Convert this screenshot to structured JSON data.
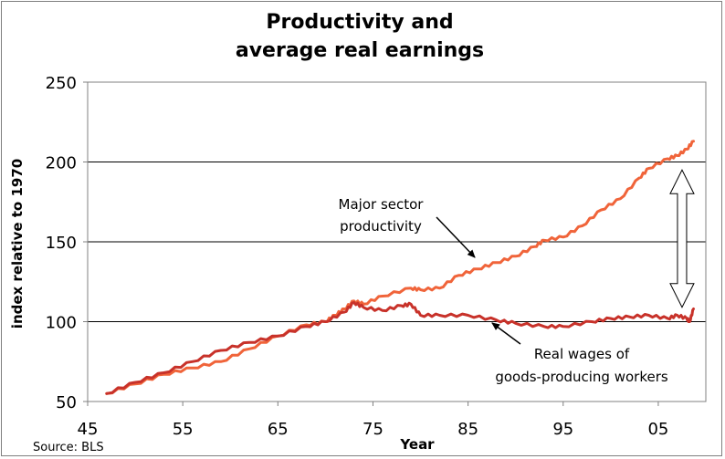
{
  "chart_data": {
    "type": "line",
    "title_line1": "Productivity and",
    "title_line2": "average real earnings",
    "xlabel": "Year",
    "ylabel": "index relative to 1970",
    "source": "Source: BLS",
    "xlim": [
      1945,
      2010
    ],
    "ylim": [
      50,
      250
    ],
    "x_ticks": [
      1945,
      1955,
      1965,
      1975,
      1985,
      1995,
      2005
    ],
    "x_tick_labels": [
      "45",
      "55",
      "65",
      "75",
      "85",
      "95",
      "05"
    ],
    "y_ticks": [
      50,
      100,
      150,
      200,
      250
    ],
    "y_tick_labels": [
      "50",
      "100",
      "150",
      "200",
      "250"
    ],
    "grid": "horizontal",
    "series": [
      {
        "key": "productivity",
        "color": "#f0643a",
        "x": [
          1947,
          1950,
          1953,
          1956,
          1959,
          1962,
          1965,
          1968,
          1970,
          1971,
          1972,
          1973,
          1974,
          1976,
          1979,
          1980,
          1982,
          1984,
          1986,
          1988,
          1990,
          1992,
          1993,
          1995,
          1997,
          1999,
          2001,
          2003,
          2004,
          2006,
          2007,
          2008,
          2008.7
        ],
        "y": [
          55,
          61,
          67,
          71,
          75,
          83,
          91,
          98,
          100,
          104,
          108,
          113,
          111,
          116,
          121,
          120,
          121,
          129,
          133,
          137,
          141,
          147,
          151,
          153,
          160,
          170,
          177,
          190,
          196,
          202,
          204,
          208,
          213
        ]
      },
      {
        "key": "wages",
        "color": "#c8322a",
        "x": [
          1947,
          1950,
          1953,
          1956,
          1959,
          1962,
          1965,
          1968,
          1970,
          1972,
          1973,
          1974,
          1976,
          1978,
          1979,
          1980,
          1982,
          1985,
          1988,
          1990,
          1993,
          1995,
          1998,
          2000,
          2002,
          2004,
          2006,
          2007,
          2008,
          2008.3,
          2008.7
        ],
        "y": [
          55,
          62,
          68,
          75,
          82,
          87,
          91,
          97,
          100,
          106,
          112,
          109,
          107,
          110,
          111,
          104,
          104,
          104,
          101,
          99,
          97,
          97,
          100,
          102,
          103,
          104,
          102,
          104,
          102,
          100,
          108
        ]
      }
    ],
    "annotations": [
      {
        "key": "productivity",
        "line1": "Major sector",
        "line2": "productivity",
        "arrow_from": [
          1984.8,
          137
        ],
        "arrow_to": [
          1986,
          133
        ]
      },
      {
        "key": "wages",
        "line1": "Real wages of",
        "line2": "goods-producing workers",
        "arrow_from": [
          1990.5,
          85
        ],
        "arrow_to": [
          1984.8,
          102
        ]
      }
    ],
    "gap_arrow": {
      "x": 2007.5,
      "y_top": 195,
      "y_bottom": 109
    }
  }
}
